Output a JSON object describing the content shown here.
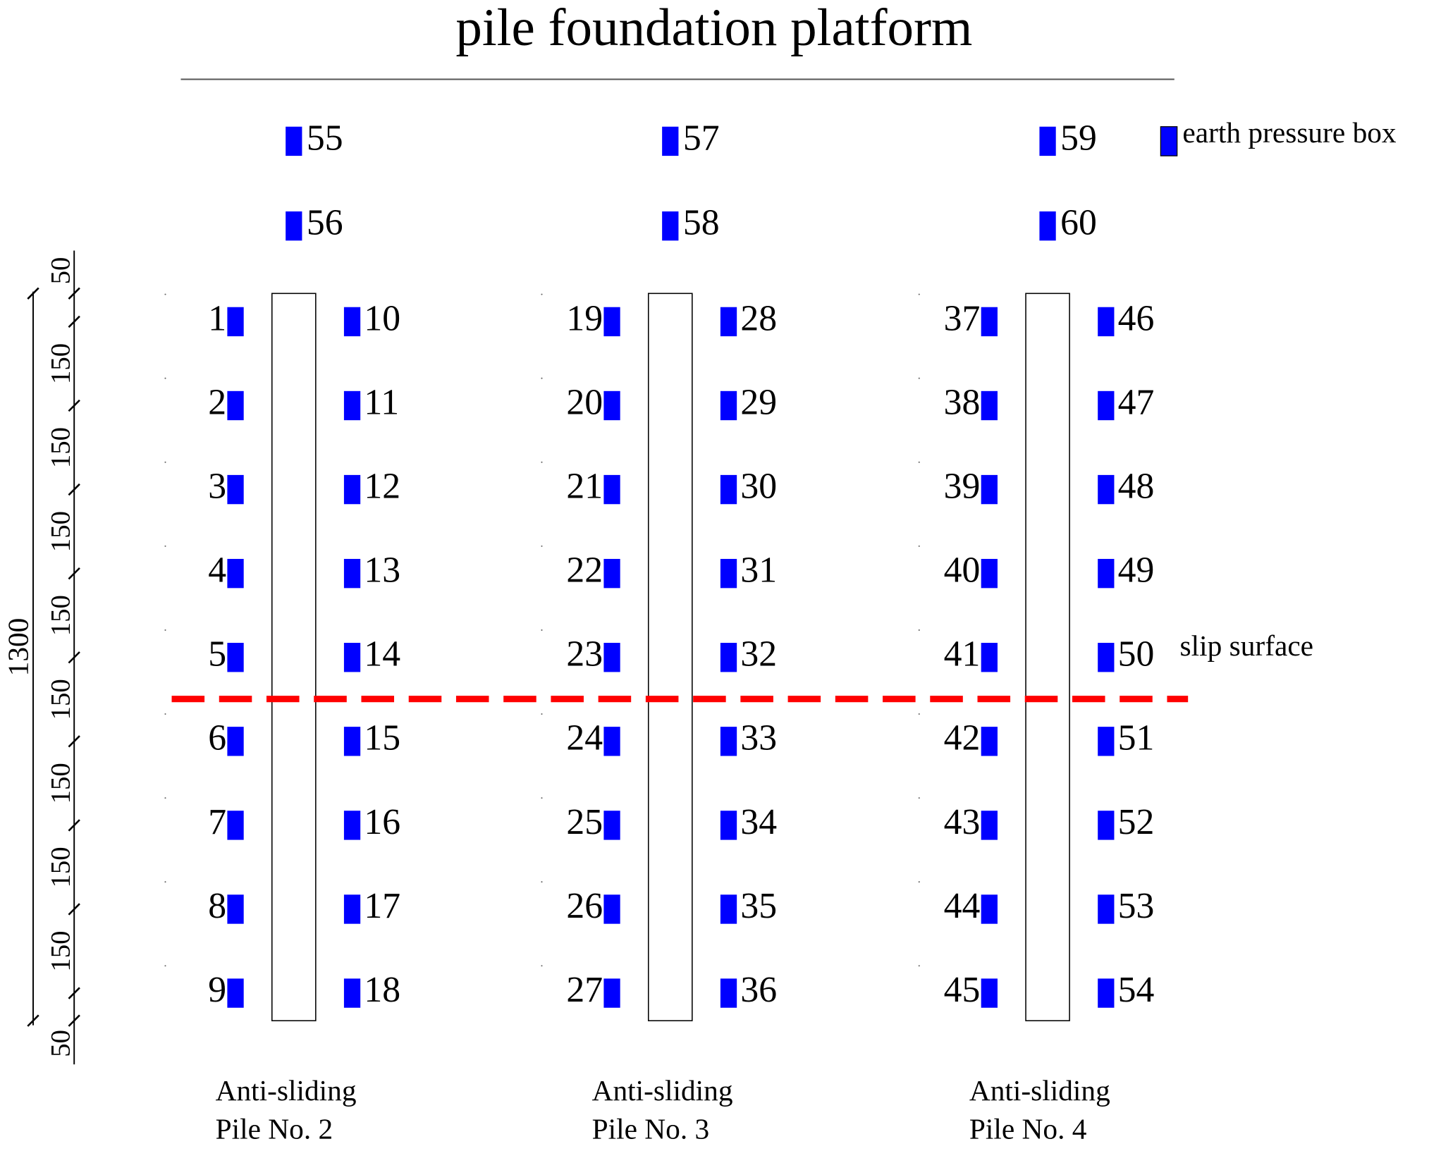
{
  "title": "pile foundation platform",
  "legend": {
    "label": "earth pressure box"
  },
  "slip_surface": {
    "label": "slip surface"
  },
  "dimensions": {
    "total": "1300",
    "segments": [
      "50",
      "150",
      "150",
      "150",
      "150",
      "150",
      "150",
      "150",
      "150",
      "50"
    ]
  },
  "piles": [
    {
      "label": [
        "Anti-sliding",
        "Pile No. 2"
      ],
      "top_boxes": [
        "55",
        "56"
      ],
      "left_boxes": [
        "1",
        "2",
        "3",
        "4",
        "5",
        "6",
        "7",
        "8",
        "9"
      ],
      "right_boxes": [
        "10",
        "11",
        "12",
        "13",
        "14",
        "15",
        "16",
        "17",
        "18"
      ]
    },
    {
      "label": [
        "Anti-sliding",
        "Pile No. 3"
      ],
      "top_boxes": [
        "57",
        "58"
      ],
      "left_boxes": [
        "19",
        "20",
        "21",
        "22",
        "23",
        "24",
        "25",
        "26",
        "27"
      ],
      "right_boxes": [
        "28",
        "29",
        "30",
        "31",
        "32",
        "33",
        "34",
        "35",
        "36"
      ]
    },
    {
      "label": [
        "Anti-sliding",
        "Pile No. 4"
      ],
      "top_boxes": [
        "59",
        "60"
      ],
      "left_boxes": [
        "37",
        "38",
        "39",
        "40",
        "41",
        "42",
        "43",
        "44",
        "45"
      ],
      "right_boxes": [
        "46",
        "47",
        "48",
        "49",
        "50",
        "51",
        "52",
        "53",
        "54"
      ]
    }
  ]
}
